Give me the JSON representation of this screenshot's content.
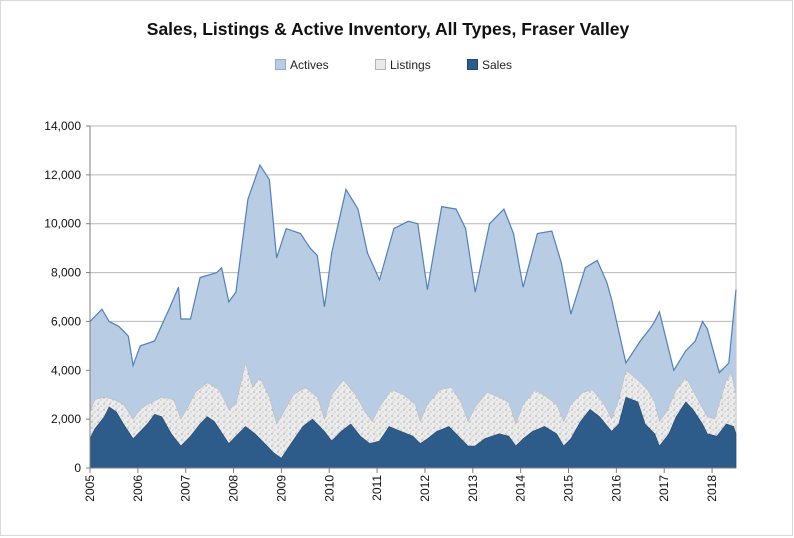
{
  "chart_data": {
    "type": "area",
    "title": "Sales, Listings & Active Inventory, All Types, Fraser Valley",
    "xlabel": "",
    "ylabel": "",
    "ylim": [
      0,
      14000
    ],
    "xlim": [
      2005,
      2018.5
    ],
    "y_ticks": [
      "0",
      "2,000",
      "4,000",
      "6,000",
      "8,000",
      "10,000",
      "12,000",
      "14,000"
    ],
    "x_ticks": [
      "2005",
      "2006",
      "2007",
      "2008",
      "2009",
      "2010",
      "2011",
      "2012",
      "2013",
      "2014",
      "2015",
      "2016",
      "2017",
      "2018"
    ],
    "grid": "horizontal",
    "legend": "top",
    "colors": {
      "actives_fill": "#b8cce4",
      "actives_line": "#4f81bd",
      "listings_fill": "#eaeaea",
      "sales_fill": "#2e5c8a"
    },
    "series": [
      {
        "name": "Actives",
        "x": [
          2005.0,
          2005.25,
          2005.4,
          2005.6,
          2005.8,
          2005.9,
          2006.05,
          2006.35,
          2006.65,
          2006.85,
          2006.9,
          2007.1,
          2007.3,
          2007.65,
          2007.75,
          2007.9,
          2008.05,
          2008.3,
          2008.55,
          2008.75,
          2008.9,
          2009.1,
          2009.4,
          2009.6,
          2009.75,
          2009.9,
          2010.05,
          2010.35,
          2010.6,
          2010.8,
          2011.05,
          2011.35,
          2011.65,
          2011.85,
          2012.05,
          2012.35,
          2012.65,
          2012.85,
          2013.05,
          2013.35,
          2013.65,
          2013.85,
          2014.05,
          2014.35,
          2014.65,
          2014.85,
          2015.05,
          2015.35,
          2015.6,
          2015.8,
          2015.9,
          2016.2,
          2016.5,
          2016.7,
          2016.8,
          2016.9,
          2017.2,
          2017.45,
          2017.65,
          2017.8,
          2017.9,
          2018.15,
          2018.35,
          2018.5
        ],
        "values": [
          6000,
          6500,
          6000,
          5800,
          5400,
          4200,
          5000,
          5200,
          6500,
          7400,
          6100,
          6100,
          7800,
          8000,
          8200,
          6800,
          7200,
          11000,
          12400,
          11800,
          8600,
          9800,
          9600,
          9000,
          8700,
          6600,
          8800,
          11400,
          10600,
          8800,
          7700,
          9800,
          10100,
          10000,
          7300,
          10700,
          10600,
          9800,
          7200,
          10000,
          10600,
          9600,
          7400,
          9600,
          9700,
          8400,
          6300,
          8200,
          8500,
          7600,
          6900,
          4300,
          5200,
          5700,
          6000,
          6400,
          4000,
          4800,
          5200,
          6000,
          5700,
          3900,
          4300,
          7300
        ]
      },
      {
        "name": "Listings",
        "x": [
          2005.0,
          2005.1,
          2005.3,
          2005.5,
          2005.7,
          2005.9,
          2006.05,
          2006.2,
          2006.5,
          2006.75,
          2006.9,
          2007.05,
          2007.2,
          2007.45,
          2007.7,
          2007.9,
          2008.05,
          2008.25,
          2008.4,
          2008.55,
          2008.75,
          2008.9,
          2009.05,
          2009.25,
          2009.5,
          2009.75,
          2009.9,
          2010.05,
          2010.3,
          2010.55,
          2010.75,
          2010.9,
          2011.05,
          2011.3,
          2011.55,
          2011.8,
          2011.9,
          2012.05,
          2012.3,
          2012.55,
          2012.75,
          2012.9,
          2013.05,
          2013.3,
          2013.55,
          2013.75,
          2013.9,
          2014.05,
          2014.3,
          2014.55,
          2014.75,
          2014.9,
          2015.05,
          2015.3,
          2015.5,
          2015.75,
          2015.9,
          2016.05,
          2016.2,
          2016.45,
          2016.65,
          2016.8,
          2016.9,
          2017.05,
          2017.25,
          2017.45,
          2017.65,
          2017.9,
          2018.05,
          2018.3,
          2018.4,
          2018.5
        ],
        "values": [
          2300,
          2800,
          2900,
          2800,
          2600,
          2000,
          2400,
          2600,
          2900,
          2800,
          2000,
          2500,
          3100,
          3500,
          3200,
          2400,
          2600,
          4300,
          3300,
          3700,
          2900,
          1800,
          2300,
          3000,
          3300,
          2900,
          2000,
          3000,
          3600,
          3000,
          2300,
          1900,
          2500,
          3200,
          3000,
          2600,
          1900,
          2600,
          3200,
          3300,
          2700,
          1900,
          2500,
          3100,
          2900,
          2700,
          1800,
          2600,
          3200,
          2900,
          2600,
          1900,
          2600,
          3100,
          3200,
          2600,
          2000,
          2800,
          4000,
          3600,
          3200,
          2700,
          1900,
          2300,
          3200,
          3700,
          3000,
          2100,
          2000,
          3600,
          3900,
          3000
        ]
      },
      {
        "name": "Sales",
        "x": [
          2005.0,
          2005.1,
          2005.3,
          2005.4,
          2005.55,
          2005.7,
          2005.9,
          2006.05,
          2006.2,
          2006.35,
          2006.5,
          2006.7,
          2006.9,
          2007.1,
          2007.3,
          2007.45,
          2007.6,
          2007.9,
          2008.05,
          2008.25,
          2008.45,
          2008.7,
          2008.85,
          2009.0,
          2009.2,
          2009.45,
          2009.65,
          2009.8,
          2009.9,
          2010.05,
          2010.25,
          2010.45,
          2010.65,
          2010.85,
          2011.05,
          2011.25,
          2011.5,
          2011.75,
          2011.9,
          2012.05,
          2012.25,
          2012.5,
          2012.75,
          2012.9,
          2013.05,
          2013.25,
          2013.55,
          2013.75,
          2013.9,
          2014.05,
          2014.25,
          2014.5,
          2014.75,
          2014.9,
          2015.05,
          2015.25,
          2015.45,
          2015.65,
          2015.9,
          2016.05,
          2016.2,
          2016.45,
          2016.6,
          2016.8,
          2016.9,
          2017.1,
          2017.25,
          2017.45,
          2017.6,
          2017.8,
          2017.9,
          2018.1,
          2018.3,
          2018.45,
          2018.5
        ],
        "values": [
          1200,
          1600,
          2100,
          2500,
          2300,
          1800,
          1200,
          1500,
          1800,
          2200,
          2100,
          1400,
          900,
          1300,
          1800,
          2100,
          1900,
          1000,
          1300,
          1700,
          1400,
          900,
          600,
          400,
          1000,
          1700,
          2000,
          1700,
          1500,
          1100,
          1500,
          1800,
          1300,
          1000,
          1100,
          1700,
          1500,
          1300,
          1000,
          1200,
          1500,
          1700,
          1200,
          900,
          900,
          1200,
          1400,
          1300,
          900,
          1200,
          1500,
          1700,
          1400,
          900,
          1200,
          1900,
          2400,
          2100,
          1500,
          1800,
          2900,
          2700,
          1800,
          1400,
          900,
          1400,
          2100,
          2700,
          2400,
          1800,
          1400,
          1300,
          1800,
          1700,
          1400
        ]
      }
    ]
  }
}
